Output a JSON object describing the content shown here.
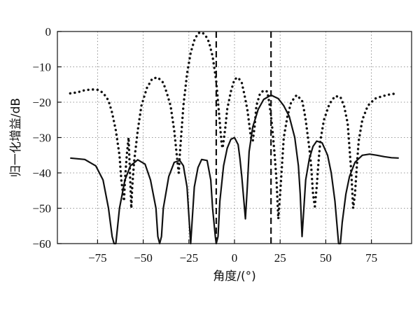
{
  "chart_data": {
    "type": "line",
    "xlabel": "角度/(°)",
    "ylabel": "归一化增益/dB",
    "xlim": [
      -97,
      97
    ],
    "ylim": [
      -60,
      0
    ],
    "xticks": [
      -75,
      -50,
      -25,
      0,
      25,
      50,
      75
    ],
    "xtick_labels": [
      "−75",
      "−50",
      "−25",
      "0",
      "25",
      "50",
      "75"
    ],
    "yticks": [
      0,
      -10,
      -20,
      -30,
      -40,
      -50,
      -60
    ],
    "ytick_labels": [
      "0",
      "−10",
      "−20",
      "−30",
      "−40",
      "−50",
      "−60"
    ],
    "grid": true,
    "grid_style": "dotted",
    "markers": [
      {
        "x": -10,
        "style": "dashed"
      },
      {
        "x": 20,
        "style": "dashed"
      }
    ],
    "series": [
      {
        "style": "solid",
        "points": [
          [
            -90,
            -35.8
          ],
          [
            -82,
            -36.2
          ],
          [
            -76,
            -38
          ],
          [
            -72,
            -42
          ],
          [
            -69,
            -50
          ],
          [
            -67,
            -58
          ],
          [
            -66,
            -60
          ],
          [
            -65,
            -60
          ],
          [
            -63,
            -50
          ],
          [
            -60,
            -42
          ],
          [
            -57,
            -38
          ],
          [
            -53,
            -36.3
          ],
          [
            -49,
            -37.5
          ],
          [
            -46,
            -42
          ],
          [
            -43,
            -50
          ],
          [
            -42,
            -58
          ],
          [
            -41,
            -60
          ],
          [
            -40,
            -58
          ],
          [
            -39,
            -50
          ],
          [
            -36,
            -41
          ],
          [
            -33,
            -37
          ],
          [
            -30,
            -36.5
          ],
          [
            -28,
            -38
          ],
          [
            -26,
            -44
          ],
          [
            -25,
            -52
          ],
          [
            -24,
            -60
          ],
          [
            -23,
            -52
          ],
          [
            -22,
            -44
          ],
          [
            -20,
            -38.5
          ],
          [
            -18,
            -36.2
          ],
          [
            -15,
            -36.5
          ],
          [
            -13,
            -42
          ],
          [
            -12,
            -50
          ],
          [
            -10.5,
            -58
          ],
          [
            -10,
            -60
          ],
          [
            -9,
            -58
          ],
          [
            -8,
            -48
          ],
          [
            -6,
            -38
          ],
          [
            -4,
            -33
          ],
          [
            -2,
            -30.5
          ],
          [
            0,
            -30
          ],
          [
            2,
            -32
          ],
          [
            3,
            -36
          ],
          [
            4,
            -41
          ],
          [
            5,
            -47
          ],
          [
            6,
            -53
          ],
          [
            7,
            -44
          ],
          [
            8,
            -34
          ],
          [
            10,
            -27
          ],
          [
            13,
            -22
          ],
          [
            16,
            -19.2
          ],
          [
            20,
            -18
          ],
          [
            24,
            -19
          ],
          [
            27,
            -21
          ],
          [
            30,
            -24
          ],
          [
            33,
            -30
          ],
          [
            35,
            -38
          ],
          [
            36,
            -46
          ],
          [
            37,
            -58
          ],
          [
            38,
            -50
          ],
          [
            39,
            -42
          ],
          [
            41,
            -36
          ],
          [
            43,
            -32.5
          ],
          [
            45,
            -31
          ],
          [
            48,
            -31.5
          ],
          [
            51,
            -35
          ],
          [
            53,
            -40
          ],
          [
            55,
            -48
          ],
          [
            56,
            -54
          ],
          [
            57,
            -60
          ],
          [
            58,
            -60
          ],
          [
            59,
            -54
          ],
          [
            61,
            -46
          ],
          [
            63,
            -41
          ],
          [
            66,
            -37
          ],
          [
            70,
            -35
          ],
          [
            74,
            -34.7
          ],
          [
            78,
            -35
          ],
          [
            82,
            -35.4
          ],
          [
            86,
            -35.7
          ],
          [
            90,
            -35.8
          ]
        ]
      },
      {
        "style": "dotted",
        "points": [
          [
            -90,
            -17.5
          ],
          [
            -86,
            -17.2
          ],
          [
            -82,
            -16.6
          ],
          [
            -78,
            -16.4
          ],
          [
            -75,
            -16.5
          ],
          [
            -72,
            -17.3
          ],
          [
            -69,
            -19.5
          ],
          [
            -67,
            -23
          ],
          [
            -65,
            -28
          ],
          [
            -63,
            -35
          ],
          [
            -62,
            -42
          ],
          [
            -61,
            -46
          ],
          [
            -60.5,
            -48
          ],
          [
            -60,
            -42
          ],
          [
            -59,
            -35
          ],
          [
            -58,
            -30
          ],
          [
            -56.5,
            -50
          ],
          [
            -56,
            -44
          ],
          [
            -55,
            -37
          ],
          [
            -53,
            -28
          ],
          [
            -51,
            -21
          ],
          [
            -48,
            -16
          ],
          [
            -45,
            -13.3
          ],
          [
            -42,
            -13
          ],
          [
            -39,
            -14.5
          ],
          [
            -37,
            -17.5
          ],
          [
            -35,
            -21
          ],
          [
            -33,
            -28
          ],
          [
            -32,
            -33
          ],
          [
            -31,
            -38
          ],
          [
            -30.5,
            -40
          ],
          [
            -30,
            -35
          ],
          [
            -29,
            -28
          ],
          [
            -28,
            -21
          ],
          [
            -26,
            -12
          ],
          [
            -24,
            -6
          ],
          [
            -22,
            -2.5
          ],
          [
            -20,
            -0.5
          ],
          [
            -18,
            -0.2
          ],
          [
            -16,
            -1
          ],
          [
            -14,
            -3
          ],
          [
            -12,
            -7
          ],
          [
            -10,
            -14
          ],
          [
            -9,
            -20
          ],
          [
            -8,
            -26
          ],
          [
            -7.5,
            -29
          ],
          [
            -7,
            -32
          ],
          [
            -6.5,
            -33
          ],
          [
            -6,
            -31
          ],
          [
            -5,
            -27
          ],
          [
            -4,
            -22
          ],
          [
            -2,
            -17
          ],
          [
            0,
            -13.5
          ],
          [
            2,
            -13
          ],
          [
            4,
            -14.5
          ],
          [
            5.5,
            -18
          ],
          [
            7,
            -22
          ],
          [
            8,
            -26
          ],
          [
            9,
            -30
          ],
          [
            10,
            -31
          ],
          [
            11,
            -27
          ],
          [
            12,
            -21
          ],
          [
            14,
            -17.5
          ],
          [
            16,
            -16.7
          ],
          [
            18,
            -17
          ],
          [
            19,
            -20
          ],
          [
            20,
            -24
          ],
          [
            21,
            -29
          ],
          [
            22,
            -35
          ],
          [
            23,
            -42
          ],
          [
            24,
            -53
          ],
          [
            25,
            -46
          ],
          [
            26,
            -38
          ],
          [
            27,
            -30
          ],
          [
            29,
            -24
          ],
          [
            31,
            -20
          ],
          [
            34,
            -18
          ],
          [
            37,
            -19.5
          ],
          [
            38,
            -22
          ],
          [
            39,
            -25
          ],
          [
            40,
            -29
          ],
          [
            41,
            -33
          ],
          [
            42,
            -38
          ],
          [
            43,
            -46
          ],
          [
            44,
            -49.5
          ],
          [
            45,
            -44
          ],
          [
            46,
            -37
          ],
          [
            47,
            -31
          ],
          [
            49,
            -25
          ],
          [
            52,
            -20.5
          ],
          [
            55,
            -18.3
          ],
          [
            58,
            -18.5
          ],
          [
            60,
            -21
          ],
          [
            62,
            -26
          ],
          [
            63,
            -33
          ],
          [
            64,
            -40
          ],
          [
            65,
            -50
          ],
          [
            66,
            -46
          ],
          [
            67,
            -38
          ],
          [
            68,
            -31
          ],
          [
            70,
            -25
          ],
          [
            73,
            -21
          ],
          [
            77,
            -19
          ],
          [
            81,
            -18.3
          ],
          [
            85,
            -17.8
          ],
          [
            89,
            -17.5
          ]
        ]
      }
    ]
  }
}
